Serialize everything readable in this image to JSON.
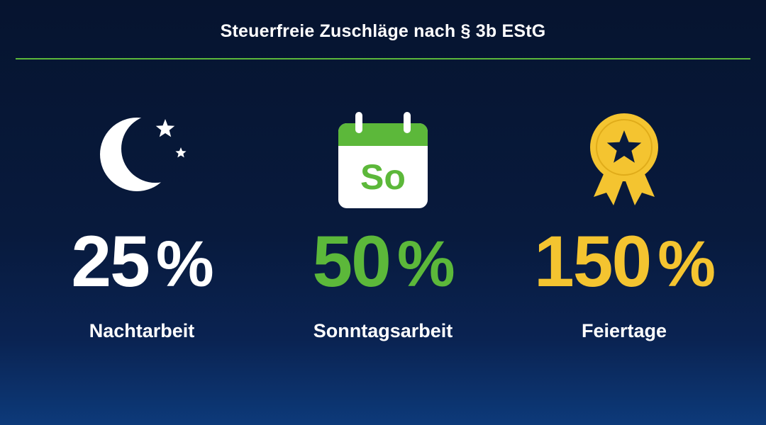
{
  "title": "Steuerfreie Zuschläge nach § 3b EStG",
  "colors": {
    "accent_green": "#5cb83a",
    "accent_yellow": "#f4c430",
    "white": "#ffffff",
    "background": "#06142f"
  },
  "items": [
    {
      "icon": "moon-stars-icon",
      "value": "25",
      "unit": "%",
      "label": "Nachtarbeit",
      "color": "#ffffff"
    },
    {
      "icon": "calendar-icon",
      "icon_text": "So",
      "value": "50",
      "unit": "%",
      "label": "Sonntagsarbeit",
      "color": "#5cb83a"
    },
    {
      "icon": "award-badge-icon",
      "value": "150",
      "unit": "%",
      "label": "Feiertage",
      "color": "#f4c430"
    }
  ]
}
